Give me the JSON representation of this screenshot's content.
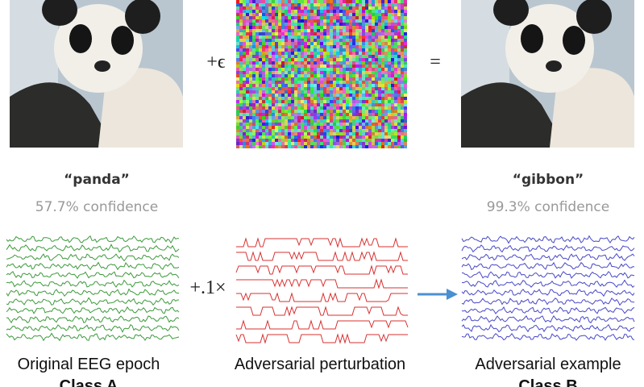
{
  "top": {
    "plus_epsilon": "+ϵ",
    "equals": "=",
    "left": {
      "label": "“panda”",
      "confidence": "57.7% confidence"
    },
    "right": {
      "label": "“gibbon”",
      "confidence": "99.3% confidence"
    }
  },
  "bottom": {
    "scale": "+.1×",
    "left": {
      "caption": "Original EEG epoch",
      "class": "Class A"
    },
    "middle": {
      "caption": "Adversarial perturbation"
    },
    "right": {
      "caption": "Adversarial example",
      "class": "Class B"
    }
  }
}
